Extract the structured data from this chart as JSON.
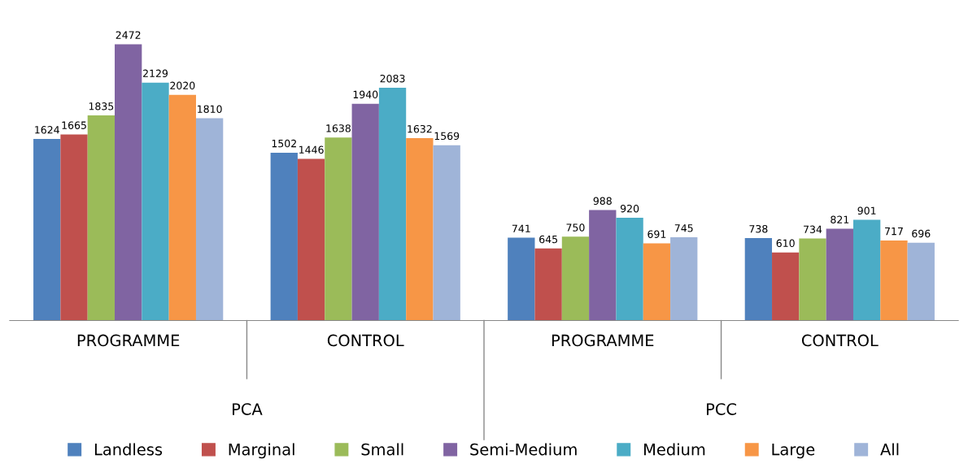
{
  "chart_data": {
    "type": "bar",
    "categories": [
      "PROGRAMME",
      "CONTROL",
      "PROGRAMME",
      "CONTROL"
    ],
    "series": [
      {
        "name": "Landless",
        "color": "#4f81bd",
        "values": [
          1624,
          1502,
          741,
          738
        ]
      },
      {
        "name": "Marginal",
        "color": "#c0504d",
        "values": [
          1665,
          1446,
          645,
          610
        ]
      },
      {
        "name": "Small",
        "color": "#9bbb59",
        "values": [
          1835,
          1638,
          750,
          734
        ]
      },
      {
        "name": "Semi-Medium",
        "color": "#8064a2",
        "values": [
          2472,
          1940,
          988,
          821
        ]
      },
      {
        "name": "Medium",
        "color": "#4bacc6",
        "values": [
          2129,
          2083,
          920,
          901
        ]
      },
      {
        "name": "Large",
        "color": "#f79646",
        "values": [
          2020,
          1632,
          691,
          717
        ]
      },
      {
        "name": "All",
        "color": "#9fb4d8",
        "values": [
          1810,
          1569,
          745,
          696
        ]
      }
    ],
    "annotations": [
      "PCA",
      "PCC"
    ],
    "data_labels": true,
    "legend": "bottom",
    "grid": false
  }
}
